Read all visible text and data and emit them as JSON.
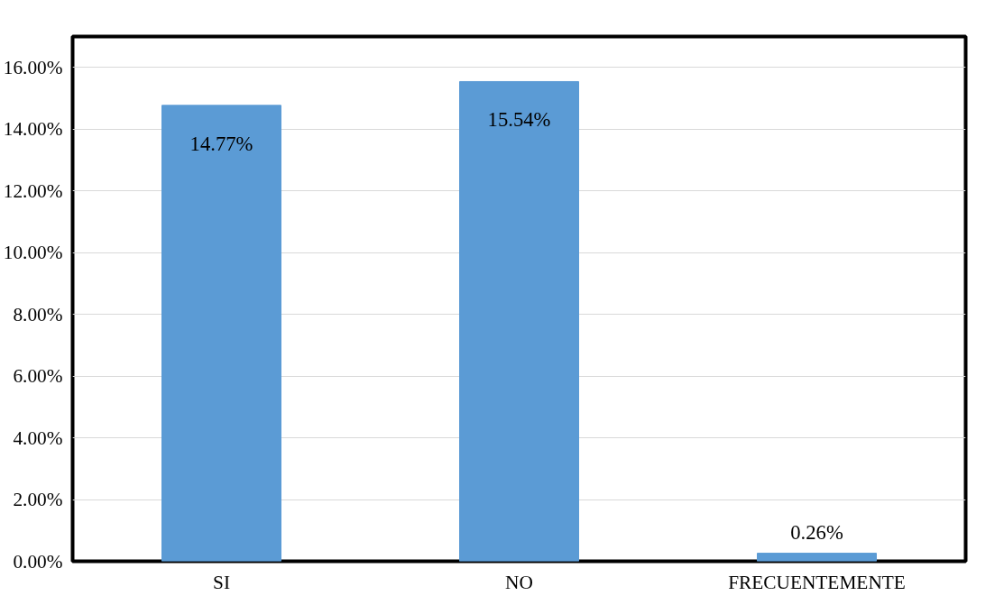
{
  "chart_data": {
    "type": "bar",
    "categories": [
      "SI",
      "NO",
      "FRECUENTEMENTE"
    ],
    "values": [
      14.77,
      15.54,
      0.26
    ],
    "color": "#5b9bd5",
    "value_labels": [
      "14.77%",
      "15.54%",
      "0.26%"
    ],
    "ylim": [
      0,
      17
    ],
    "yticks": [
      {
        "value": 0,
        "label": "0.00%"
      },
      {
        "value": 2,
        "label": "2.00%"
      },
      {
        "value": 4,
        "label": "4.00%"
      },
      {
        "value": 6,
        "label": "6.00%"
      },
      {
        "value": 8,
        "label": "8.00%"
      },
      {
        "value": 10,
        "label": "10.00%"
      },
      {
        "value": 12,
        "label": "12.00%"
      },
      {
        "value": 14,
        "label": "14.00%"
      },
      {
        "value": 16,
        "label": "16.00%"
      }
    ],
    "grid": "y"
  }
}
